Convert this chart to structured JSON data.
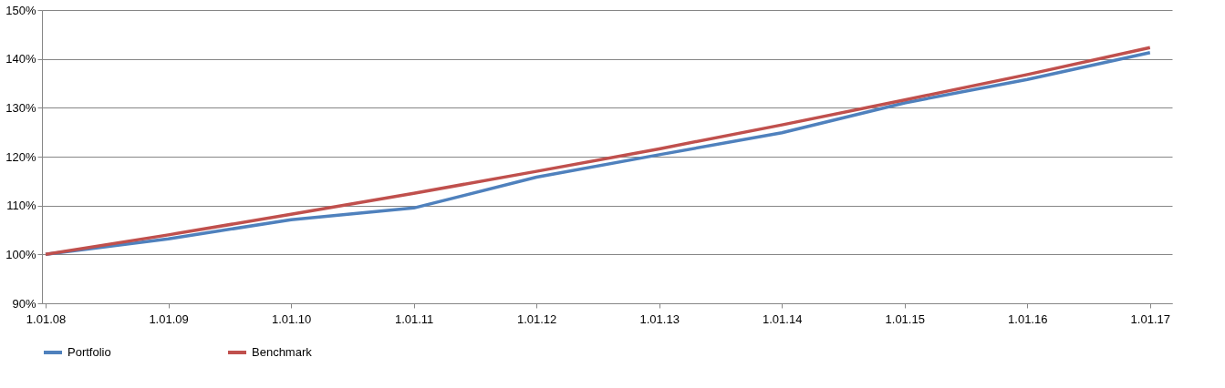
{
  "chart_data": {
    "type": "line",
    "categories": [
      "1.01.08",
      "1.01.09",
      "1.01.10",
      "1.01.11",
      "1.01.12",
      "1.01.13",
      "1.01.14",
      "1.01.15",
      "1.01.16",
      "1.01.17"
    ],
    "series": [
      {
        "name": "Portfolio",
        "color": "#4f81bd",
        "values": [
          100,
          103.2,
          107.1,
          109.5,
          115.8,
          120.4,
          124.9,
          131.0,
          135.8,
          141.3
        ]
      },
      {
        "name": "Benchmark",
        "color": "#c0504d",
        "values": [
          100,
          104.0,
          108.2,
          112.5,
          117.0,
          121.6,
          126.5,
          131.6,
          136.8,
          142.3
        ]
      }
    ],
    "ylim": [
      90,
      150
    ],
    "yticks": [
      {
        "value": 90,
        "label": "90%"
      },
      {
        "value": 100,
        "label": "100%"
      },
      {
        "value": 110,
        "label": "110%"
      },
      {
        "value": 120,
        "label": "120%"
      },
      {
        "value": 130,
        "label": "130%"
      },
      {
        "value": 140,
        "label": "140%"
      },
      {
        "value": 150,
        "label": "150%"
      }
    ],
    "grid": "y",
    "legend": "bottom",
    "marker": "none",
    "line_style": "solid"
  }
}
